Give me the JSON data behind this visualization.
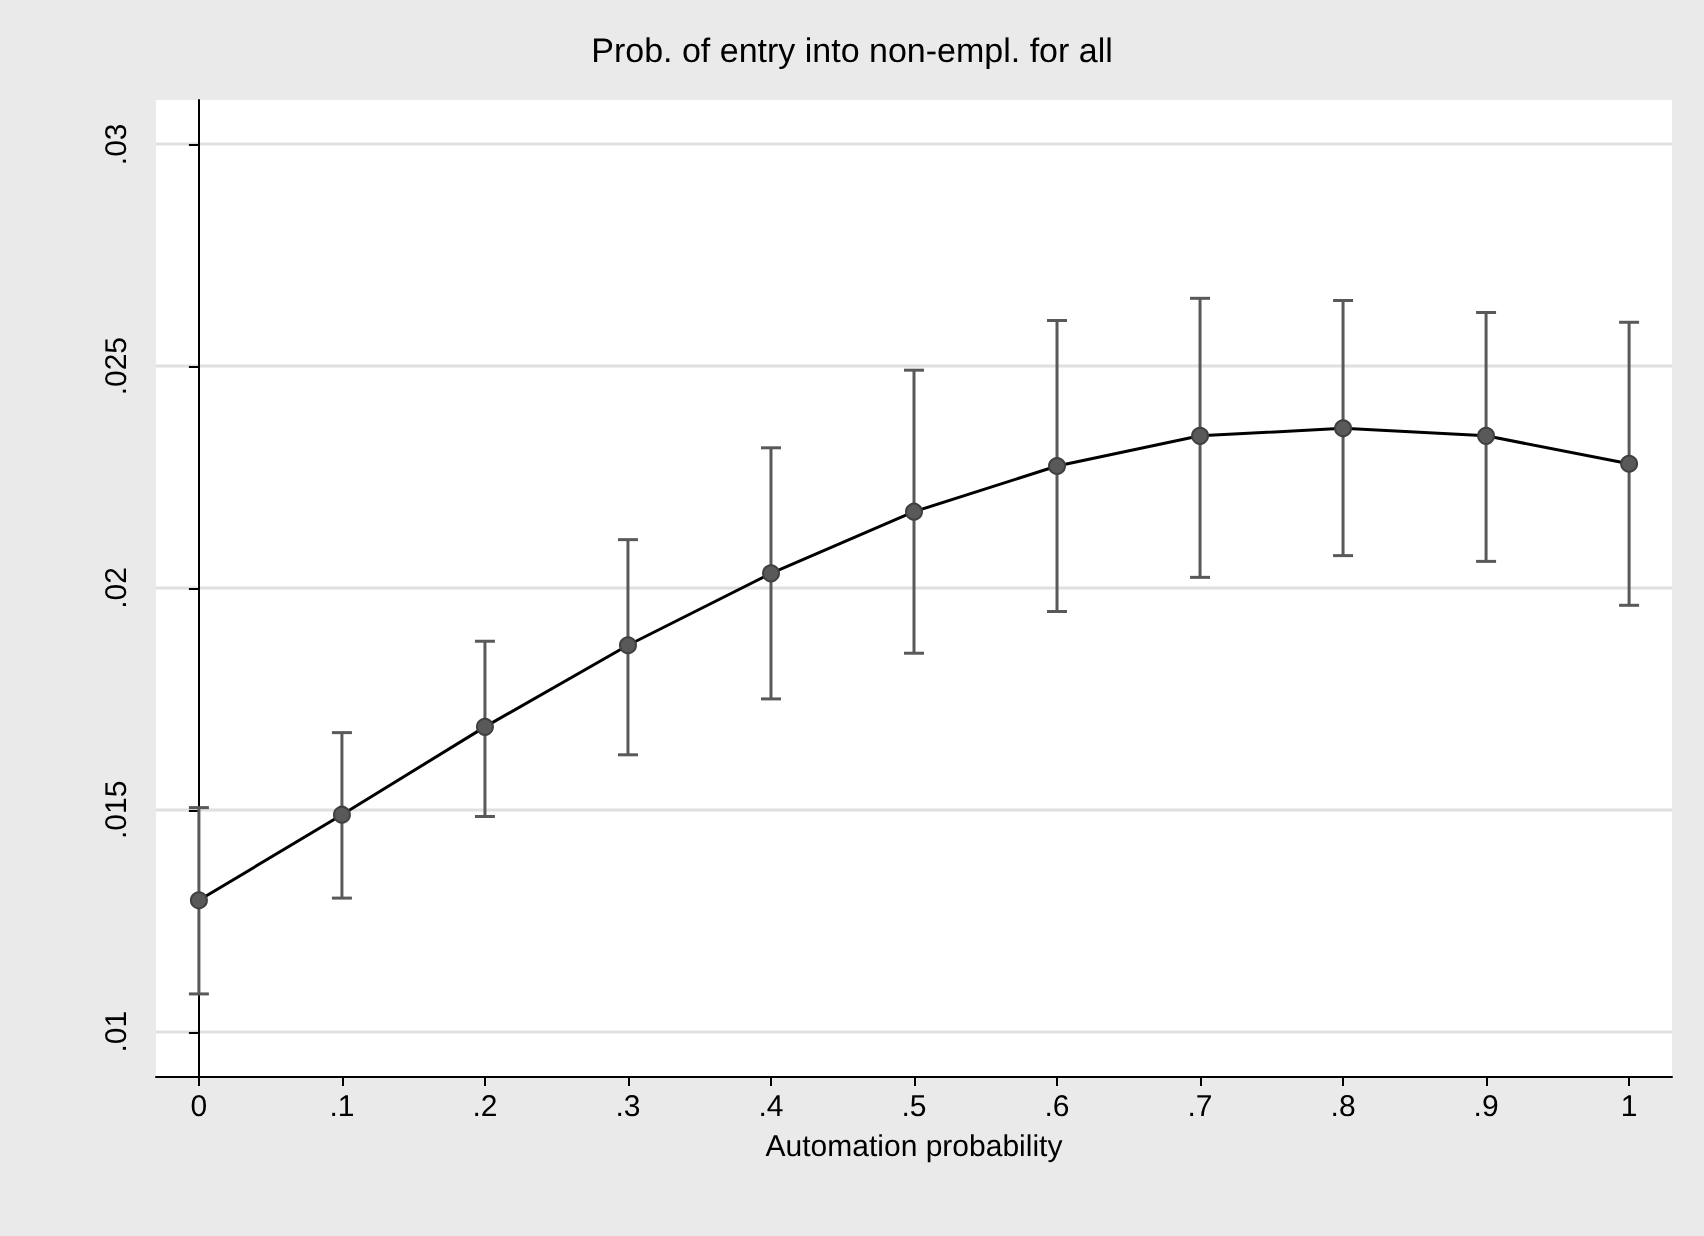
{
  "chart_data": {
    "type": "line",
    "title": "Prob. of entry into non-empl. for all",
    "xlabel": "Automation probability",
    "x": [
      0,
      0.1,
      0.2,
      0.3,
      0.4,
      0.5,
      0.6,
      0.7,
      0.8,
      0.9,
      1
    ],
    "series": [
      {
        "color": "#000000",
        "values": [
          0.01296,
          0.01489,
          0.01687,
          0.01871,
          0.02033,
          0.02172,
          0.02275,
          0.02343,
          0.0236,
          0.02343,
          0.0228
        ],
        "errors": [
          [
            0.01085,
            0.01505
          ],
          [
            0.01301,
            0.01674
          ],
          [
            0.01485,
            0.0188
          ],
          [
            0.01624,
            0.02109
          ],
          [
            0.0175,
            0.02316
          ],
          [
            0.01853,
            0.02491
          ],
          [
            0.01947,
            0.02603
          ],
          [
            0.02024,
            0.02653
          ],
          [
            0.02073,
            0.02648
          ],
          [
            0.0206,
            0.02621
          ],
          [
            0.01961,
            0.02599
          ]
        ]
      }
    ],
    "marker": "circle",
    "line_style": "solid",
    "grid": "y",
    "xlim": [
      -0.03,
      1.03
    ],
    "xticks": [
      0,
      {
        "value": 0.1,
        "label": ".1"
      },
      {
        "value": 0.2,
        "label": ".2"
      },
      {
        "value": 0.3,
        "label": ".3"
      },
      {
        "value": 0.4,
        "label": ".4"
      },
      {
        "value": 0.5,
        "label": ".5"
      },
      {
        "value": 0.6,
        "label": ".6"
      },
      {
        "value": 0.7,
        "label": ".7"
      },
      {
        "value": 0.8,
        "label": ".8"
      },
      {
        "value": 0.9,
        "label": ".9"
      },
      1
    ],
    "ylim": [
      0.009,
      0.031
    ],
    "yticks": [
      {
        "value": 0.01,
        "label": ".01"
      },
      {
        "value": 0.015,
        "label": ".015"
      },
      {
        "value": 0.02,
        "label": ".02"
      },
      {
        "value": 0.025,
        "label": ".025"
      },
      {
        "value": 0.03,
        "label": ".03"
      }
    ]
  }
}
